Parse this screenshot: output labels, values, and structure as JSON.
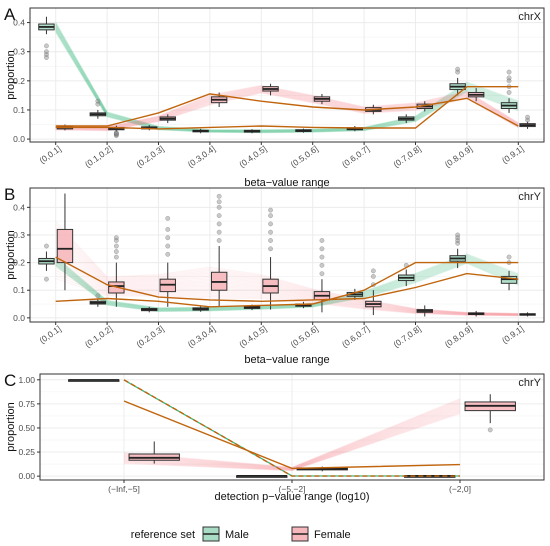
{
  "colors": {
    "male": "#1fb472",
    "female": "#f0707a",
    "trend": "#c0650e",
    "male_fill": "#a8dcc4",
    "female_fill": "#f6b8bc",
    "panel_bg": "#ffffff",
    "grid": "#ececec",
    "border": "#333333"
  },
  "legend": {
    "title": "reference set",
    "male": "Male",
    "female": "Female"
  },
  "chart_data": [
    {
      "type": "boxplot",
      "panel_letter": "A",
      "strip_label": "chrX",
      "xlabel": "beta−value range",
      "ylabel": "proportion",
      "ylim": [
        -0.01,
        0.45
      ],
      "yticks": [
        0.0,
        0.1,
        0.2,
        0.3,
        0.4
      ],
      "ytick_labels": [
        "0.0",
        "0.1",
        "0.2",
        "0.3",
        "0.4"
      ],
      "categories": [
        "(0,0.1]",
        "(0.1,0.2]",
        "(0.2,0.3]",
        "(0.3,0.4]",
        "(0.4,0.5]",
        "(0.5,0.6]",
        "(0.6,0.7]",
        "(0.7,0.8]",
        "(0.8,0.9]",
        "(0.9,1]"
      ],
      "series": [
        {
          "key": "male",
          "name": "Male",
          "boxes": [
            [
              0.36,
              0.375,
              0.385,
              0.395,
              0.42
            ],
            [
              0.07,
              0.08,
              0.085,
              0.09,
              0.1
            ],
            [
              0.03,
              0.035,
              0.038,
              0.042,
              0.048
            ],
            [
              0.02,
              0.025,
              0.028,
              0.03,
              0.035
            ],
            [
              0.02,
              0.024,
              0.027,
              0.03,
              0.034
            ],
            [
              0.022,
              0.026,
              0.029,
              0.032,
              0.036
            ],
            [
              0.027,
              0.032,
              0.035,
              0.039,
              0.045
            ],
            [
              0.055,
              0.065,
              0.07,
              0.076,
              0.085
            ],
            [
              0.15,
              0.17,
              0.18,
              0.19,
              0.21
            ],
            [
              0.09,
              0.105,
              0.115,
              0.125,
              0.14
            ]
          ],
          "outliers": [
            [
              0.32,
              0.3,
              0.29,
              0.28
            ],
            [
              0.12,
              0.13
            ],
            [],
            [],
            [],
            [],
            [],
            [],
            [
              0.23,
              0.24
            ],
            [
              0.16,
              0.18,
              0.2,
              0.21,
              0.23
            ]
          ],
          "trend": [
            0.04,
            0.04,
            0.035,
            0.04,
            0.045,
            0.04,
            0.038,
            0.038,
            0.18,
            0.18
          ]
        },
        {
          "key": "female",
          "name": "Female",
          "boxes": [
            [
              0.03,
              0.035,
              0.04,
              0.045,
              0.05
            ],
            [
              0.025,
              0.032,
              0.036,
              0.04,
              0.046
            ],
            [
              0.055,
              0.065,
              0.07,
              0.076,
              0.085
            ],
            [
              0.11,
              0.125,
              0.135,
              0.145,
              0.16
            ],
            [
              0.15,
              0.165,
              0.172,
              0.18,
              0.19
            ],
            [
              0.12,
              0.13,
              0.138,
              0.145,
              0.155
            ],
            [
              0.085,
              0.095,
              0.1,
              0.108,
              0.118
            ],
            [
              0.095,
              0.105,
              0.112,
              0.12,
              0.13
            ],
            [
              0.13,
              0.145,
              0.152,
              0.16,
              0.175
            ],
            [
              0.035,
              0.043,
              0.048,
              0.053,
              0.06
            ]
          ],
          "outliers": [
            [],
            [
              0.012,
              0.015,
              0.018,
              0.02,
              0.022
            ],
            [],
            [],
            [],
            [],
            [],
            [],
            [],
            [
              0.065,
              0.075
            ]
          ],
          "trend": [
            0.045,
            0.045,
            0.09,
            0.155,
            0.13,
            0.11,
            0.1,
            0.11,
            0.14,
            0.045
          ]
        }
      ]
    },
    {
      "type": "boxplot",
      "panel_letter": "B",
      "strip_label": "chrY",
      "xlabel": "beta−value range",
      "ylabel": "proportion",
      "ylim": [
        -0.015,
        0.47
      ],
      "yticks": [
        0.0,
        0.1,
        0.2,
        0.3,
        0.4
      ],
      "ytick_labels": [
        "0.0",
        "0.1",
        "0.2",
        "0.3",
        "0.4"
      ],
      "categories": [
        "(0,0.1]",
        "(0.1,0.2]",
        "(0.2,0.3]",
        "(0.3,0.4]",
        "(0.4,0.5]",
        "(0.5,0.6]",
        "(0.6,0.7]",
        "(0.7,0.8]",
        "(0.8,0.9]",
        "(0.9,1]"
      ],
      "series": [
        {
          "key": "male",
          "name": "Male",
          "boxes": [
            [
              0.17,
              0.195,
              0.205,
              0.215,
              0.24
            ],
            [
              0.04,
              0.05,
              0.055,
              0.06,
              0.07
            ],
            [
              0.02,
              0.026,
              0.03,
              0.034,
              0.04
            ],
            [
              0.022,
              0.028,
              0.032,
              0.036,
              0.042
            ],
            [
              0.028,
              0.034,
              0.038,
              0.042,
              0.048
            ],
            [
              0.035,
              0.042,
              0.046,
              0.05,
              0.058
            ],
            [
              0.065,
              0.078,
              0.085,
              0.092,
              0.105
            ],
            [
              0.115,
              0.135,
              0.145,
              0.155,
              0.175
            ],
            [
              0.18,
              0.205,
              0.215,
              0.225,
              0.25
            ],
            [
              0.1,
              0.125,
              0.14,
              0.15,
              0.17
            ]
          ],
          "outliers": [
            [
              0.14,
              0.26
            ],
            [
              0.08
            ],
            [],
            [],
            [],
            [],
            [],
            [
              0.19
            ],
            [
              0.27,
              0.28,
              0.29,
              0.3
            ],
            [
              0.2,
              0.22
            ]
          ],
          "trend": [
            0.06,
            0.07,
            0.06,
            0.04,
            0.045,
            0.05,
            0.1,
            0.2,
            0.2,
            0.2
          ]
        },
        {
          "key": "female",
          "name": "Female",
          "boxes": [
            [
              0.1,
              0.2,
              0.25,
              0.32,
              0.45
            ],
            [
              0.04,
              0.09,
              0.115,
              0.13,
              0.2
            ],
            [
              0.04,
              0.095,
              0.12,
              0.14,
              0.2
            ],
            [
              0.04,
              0.1,
              0.13,
              0.165,
              0.26
            ],
            [
              0.03,
              0.09,
              0.115,
              0.14,
              0.22
            ],
            [
              0.02,
              0.065,
              0.08,
              0.095,
              0.14
            ],
            [
              0.01,
              0.04,
              0.05,
              0.06,
              0.1
            ],
            [
              0.005,
              0.02,
              0.025,
              0.03,
              0.045
            ],
            [
              0.005,
              0.012,
              0.015,
              0.018,
              0.025
            ],
            [
              0.005,
              0.01,
              0.012,
              0.015,
              0.02
            ]
          ],
          "outliers": [
            [],
            [
              0.22,
              0.24,
              0.26,
              0.28,
              0.29
            ],
            [
              0.23,
              0.26,
              0.29,
              0.32,
              0.36
            ],
            [
              0.28,
              0.31,
              0.34,
              0.37,
              0.4,
              0.42,
              0.44
            ],
            [
              0.25,
              0.28,
              0.31,
              0.34,
              0.37,
              0.39
            ],
            [
              0.16,
              0.19,
              0.22,
              0.25,
              0.28
            ],
            [
              0.12,
              0.15,
              0.17
            ],
            [],
            [],
            []
          ],
          "trend": [
            0.22,
            0.12,
            0.075,
            0.065,
            0.06,
            0.065,
            0.07,
            0.11,
            0.16,
            0.14
          ]
        }
      ]
    },
    {
      "type": "boxplot",
      "panel_letter": "C",
      "strip_label": "chrY",
      "xlabel": "detection p−value range (log10)",
      "ylabel": "proportion",
      "ylim": [
        -0.04,
        1.06
      ],
      "yticks": [
        0.0,
        0.25,
        0.5,
        0.75,
        1.0
      ],
      "ytick_labels": [
        "0.00",
        "0.25",
        "0.50",
        "0.75",
        "1.00"
      ],
      "categories": [
        "(−Inf,−5]",
        "(−5,−2]",
        "(−2,0]"
      ],
      "series": [
        {
          "key": "male",
          "name": "Male",
          "boxes": [
            [
              0.995,
              0.997,
              0.998,
              0.999,
              1.0
            ],
            [
              0.0,
              0.001,
              0.002,
              0.003,
              0.005
            ],
            [
              0.0,
              0.001,
              0.002,
              0.003,
              0.005
            ]
          ],
          "outliers": [
            [],
            [],
            []
          ],
          "trend": [
            1.0,
            0.0,
            0.0
          ]
        },
        {
          "key": "female",
          "name": "Female",
          "boxes": [
            [
              0.13,
              0.165,
              0.19,
              0.23,
              0.36
            ],
            [
              0.05,
              0.065,
              0.075,
              0.085,
              0.1
            ],
            [
              0.55,
              0.68,
              0.73,
              0.77,
              0.85
            ]
          ],
          "outliers": [
            [],
            [],
            [
              0.48
            ]
          ],
          "trend": [
            0.78,
            0.08,
            0.12
          ]
        }
      ]
    }
  ]
}
